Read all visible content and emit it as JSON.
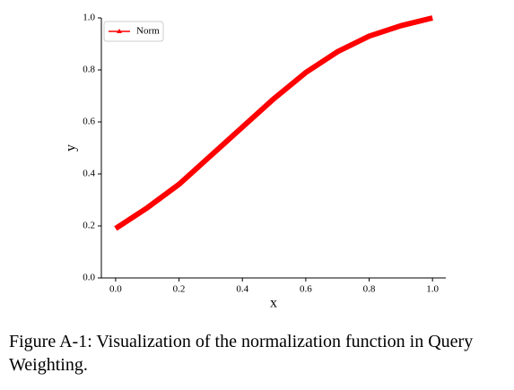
{
  "chart_data": {
    "type": "line",
    "x_label": "x",
    "y_label": "y",
    "x": [
      0,
      0.1,
      0.2,
      0.3,
      0.4,
      0.5,
      0.6,
      0.7,
      0.8,
      0.9,
      1.0
    ],
    "series": [
      {
        "name": "Norm",
        "color": "#ff0000",
        "values": [
          0.19,
          0.27,
          0.36,
          0.47,
          0.58,
          0.69,
          0.79,
          0.87,
          0.93,
          0.97,
          1.0
        ]
      }
    ],
    "xlim": [
      -0.045,
      1.042
    ],
    "xticks": [
      {
        "value": 0,
        "label": "0.0"
      },
      0.2,
      0.4,
      0.6,
      0.8,
      {
        "value": 1,
        "label": "1.0"
      }
    ],
    "ylim": [
      0,
      1.0
    ],
    "yticks": [
      {
        "value": 0,
        "label": "0.0"
      },
      0.2,
      0.4,
      0.6,
      0.8,
      {
        "value": 1,
        "label": "1.0"
      }
    ],
    "legend": "upper left",
    "caption": "Figure A-1: Visualization of the normalization function in Query Weighting."
  }
}
